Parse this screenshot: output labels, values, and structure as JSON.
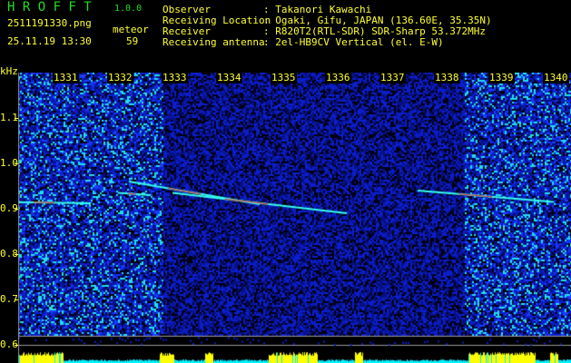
{
  "app": {
    "title": "H R O F F T",
    "version": "1.0.0"
  },
  "file": {
    "name": "2511191330.png",
    "datetime": "25.11.19 13:30"
  },
  "meteor": {
    "label": "meteor",
    "count": "59"
  },
  "info": [
    {
      "label": "Observer           ",
      "value": ": Takanori Kawachi"
    },
    {
      "label": "Receiving Location ",
      "value": ": Ogaki, Gifu, JAPAN (136.60E, 35.35N)"
    },
    {
      "label": "Receiver           ",
      "value": ": R820T2(RTL-SDR) SDR-Sharp 53.372MHz"
    },
    {
      "label": "Receiving antenna  ",
      "value": ": 2el-HB9CV Vertical (el. E-W)"
    }
  ],
  "colors": {
    "text": "#ffff33",
    "title": "#22dd22",
    "noise": "#0a1ecc",
    "signal_cyan": "#33ffee",
    "signal_red": "#ff2222",
    "bottom_yellow": "#ffff00",
    "bottom_cyan": "#00eeff"
  },
  "chart_data": {
    "type": "heatmap",
    "ylabel": "kHz",
    "x_ticks": [
      "1331",
      "1332",
      "1333",
      "1334",
      "1335",
      "1336",
      "1337",
      "1338",
      "1339",
      "1340"
    ],
    "y_ticks": [
      "1.1",
      "1.0",
      "0.9",
      "0.8",
      "0.7",
      "0.6"
    ],
    "ylim": [
      0.58,
      1.2
    ],
    "xlim": [
      "1330",
      "1340"
    ],
    "traces": [
      {
        "t": [
          1330.0,
          1331.5
        ],
        "f": [
          0.915,
          0.912
        ]
      },
      {
        "t": [
          1332.2,
          1334.6
        ],
        "f": [
          0.96,
          0.91
        ]
      },
      {
        "t": [
          1333.0,
          1336.2
        ],
        "f": [
          0.935,
          0.89
        ]
      },
      {
        "t": [
          1332.0,
          1332.6
        ],
        "f": [
          0.935,
          0.93
        ]
      },
      {
        "t": [
          1337.5,
          1340.0
        ],
        "f": [
          0.94,
          0.915
        ]
      }
    ]
  }
}
